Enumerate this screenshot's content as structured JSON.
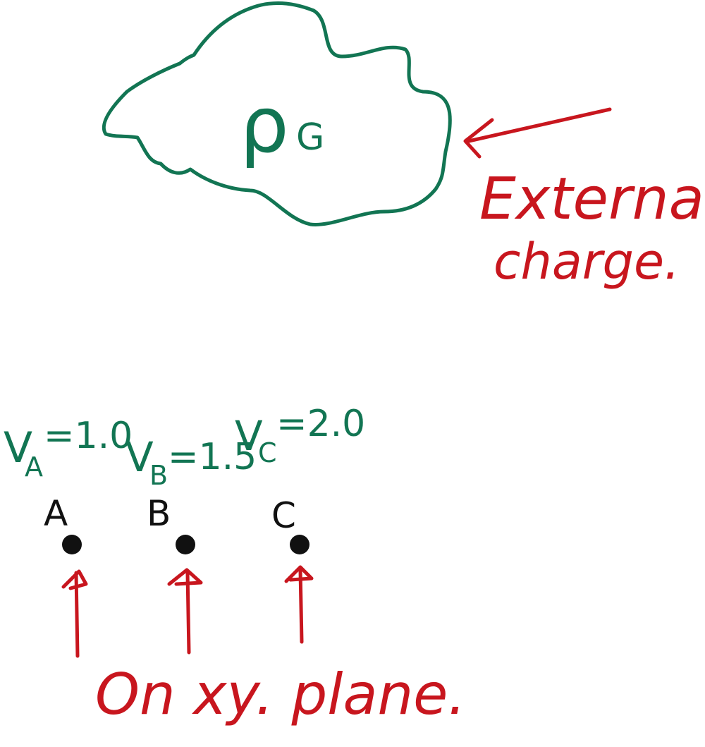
{
  "cloud": {
    "density_symbol": "ρ",
    "density_subscript": "G"
  },
  "external_label": {
    "line1": "External",
    "line2": "charge."
  },
  "voltages": {
    "A": {
      "symbol": "V",
      "subscript": "A",
      "value": "=1.0"
    },
    "B": {
      "symbol": "V",
      "subscript": "B",
      "value": "=1.5"
    },
    "C": {
      "symbol": "V",
      "subscript": "C",
      "value": "=2.0"
    }
  },
  "points": [
    {
      "label": "A"
    },
    {
      "label": "B"
    },
    {
      "label": "C"
    }
  ],
  "plane_label": "On xy. plane.",
  "colors": {
    "green": "#127553",
    "red": "#c8161e",
    "black": "#111111"
  }
}
